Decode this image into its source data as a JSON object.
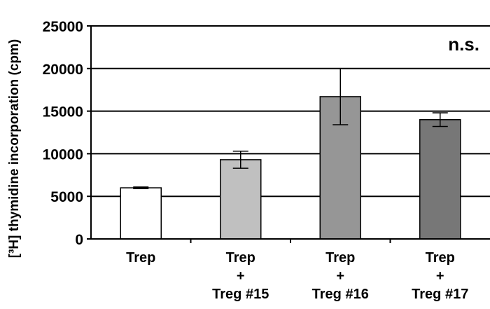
{
  "chart_data": {
    "type": "bar",
    "title": "",
    "xlabel": "",
    "ylabel": "[³H] thymidine incorporation (cpm)",
    "ylim": [
      0,
      25000
    ],
    "yticks": [
      0,
      5000,
      10000,
      15000,
      20000,
      25000
    ],
    "grid": true,
    "annotation": "n.s.",
    "categories": [
      [
        "Trep"
      ],
      [
        "Trep",
        "+",
        "Treg #15"
      ],
      [
        "Trep",
        "+",
        "Treg #16"
      ],
      [
        "Trep",
        "+",
        "Treg #17"
      ]
    ],
    "values": [
      6000,
      9300,
      16700,
      14000
    ],
    "errors": [
      100,
      1000,
      3300,
      800
    ],
    "colors": [
      "#ffffff",
      "#c0c0c0",
      "#969696",
      "#777777"
    ]
  }
}
